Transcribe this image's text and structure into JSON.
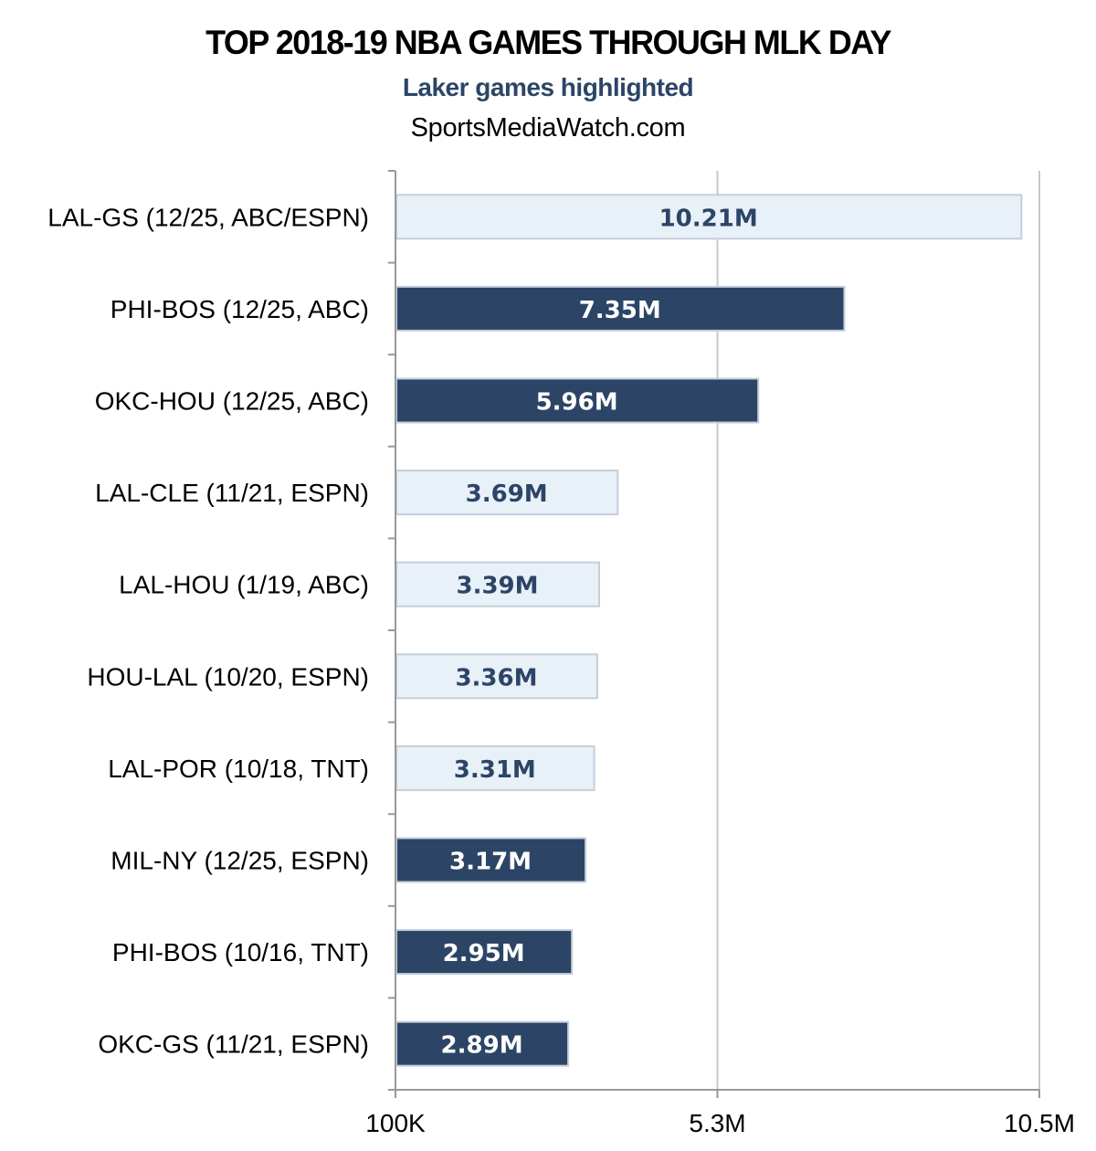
{
  "header": {
    "title": "TOP 2018-19 NBA GAMES THROUGH MLK DAY",
    "subtitle": "Laker games highlighted",
    "source": "SportsMediaWatch.com"
  },
  "colors": {
    "laker_fill": "#e8f0f8",
    "laker_stroke": "#c5cfda",
    "laker_text": "#2c4566",
    "other_fill": "#2c4566",
    "other_text": "#ffffff",
    "axis": "#999999",
    "grid": "#c8c8c8"
  },
  "chart_data": {
    "type": "bar",
    "orientation": "horizontal",
    "title": "TOP 2018-19 NBA GAMES THROUGH MLK DAY",
    "subtitle": "Laker games highlighted",
    "xlabel": "",
    "ylabel": "",
    "xlim": [
      100000,
      10500000
    ],
    "x_ticks": [
      100000,
      5300000,
      10500000
    ],
    "x_tick_labels": [
      "100K",
      "5.3M",
      "10.5M"
    ],
    "grid": true,
    "legend": "none",
    "categories": [
      "LAL-GS (12/25, ABC/ESPN)",
      "PHI-BOS (12/25, ABC)",
      "OKC-HOU (12/25, ABC)",
      "LAL-CLE (11/21, ESPN)",
      "LAL-HOU (1/19, ABC)",
      "HOU-LAL (10/20, ESPN)",
      "LAL-POR (10/18, TNT)",
      "MIL-NY (12/25, ESPN)",
      "PHI-BOS (10/16, TNT)",
      "OKC-GS (11/21, ESPN)"
    ],
    "values": [
      10210000,
      7350000,
      5960000,
      3690000,
      3390000,
      3360000,
      3310000,
      3170000,
      2950000,
      2890000
    ],
    "value_labels": [
      "10.21M",
      "7.35M",
      "5.96M",
      "3.69M",
      "3.39M",
      "3.36M",
      "3.31M",
      "3.17M",
      "2.95M",
      "2.89M"
    ],
    "highlighted_laker": [
      true,
      false,
      false,
      true,
      true,
      true,
      true,
      false,
      false,
      false
    ]
  }
}
